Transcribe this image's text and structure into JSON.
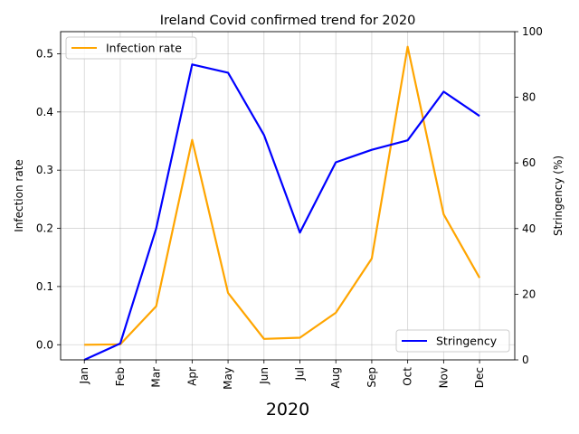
{
  "chart_data": {
    "type": "line",
    "title": "Ireland Covid confirmed trend for 2020",
    "xlabel": "2020",
    "ylabel": "Infection rate",
    "y2label": "Stringency (%)",
    "categories": [
      "Jan",
      "Feb",
      "Mar",
      "Apr",
      "May",
      "Jun",
      "Jul",
      "Aug",
      "Sep",
      "Oct",
      "Nov",
      "Dec"
    ],
    "ylim": [
      -0.026,
      0.538
    ],
    "y2lim": [
      0,
      100
    ],
    "yticks": [
      "0.0",
      "0.1",
      "0.2",
      "0.3",
      "0.4",
      "0.5"
    ],
    "y2ticks": [
      "0",
      "20",
      "40",
      "60",
      "80",
      "100"
    ],
    "grid": true,
    "series": [
      {
        "name": "Infection rate",
        "axis": "left",
        "color": "#ffa500",
        "values": [
          0.0,
          0.0005,
          0.066,
          0.352,
          0.089,
          0.01,
          0.012,
          0.055,
          0.148,
          0.512,
          0.224,
          0.115
        ],
        "legend_position": "upper-left"
      },
      {
        "name": "Stringency",
        "axis": "right",
        "color": "#0000ff",
        "values": [
          0.0,
          5.0,
          40.0,
          90.0,
          87.5,
          68.5,
          38.8,
          60.2,
          64.0,
          66.9,
          81.7,
          74.3
        ],
        "legend_position": "lower-right"
      }
    ]
  }
}
